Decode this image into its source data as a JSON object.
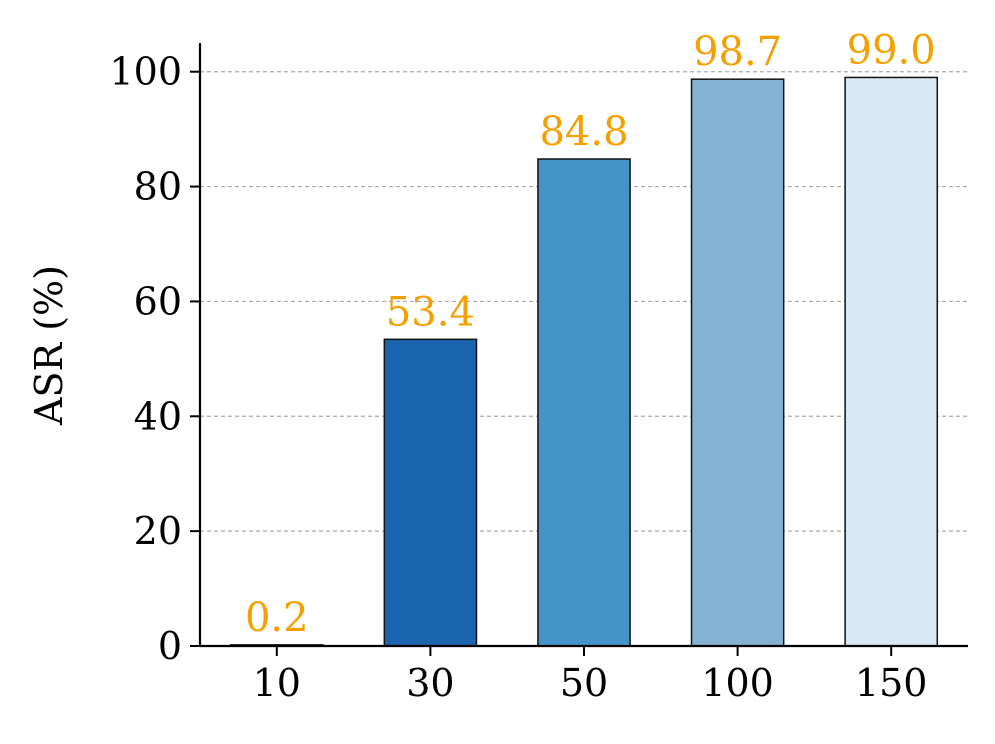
{
  "chart_data": {
    "type": "bar",
    "categories": [
      "10",
      "30",
      "50",
      "100",
      "150"
    ],
    "values": [
      0.2,
      53.4,
      84.8,
      98.7,
      99.0
    ],
    "data_labels": [
      "0.2",
      "53.4",
      "84.8",
      "98.7",
      "99.0"
    ],
    "bar_colors": [
      "#08306b",
      "#1a65ad",
      "#4594c7",
      "#82b3d2",
      "#dae8f3"
    ],
    "label_color": "#f5a000",
    "bar_edge_color": "#111111",
    "grid_color": "#aaaaaa",
    "title": "",
    "xlabel": "",
    "ylabel": "ASR (%)",
    "ylim": [
      0,
      105
    ],
    "yticks": [
      0,
      20,
      40,
      60,
      80,
      100
    ],
    "ytick_labels": [
      "0",
      "20",
      "40",
      "60",
      "80",
      "100"
    ],
    "grid": "horizontal dashed",
    "legend": "none"
  }
}
